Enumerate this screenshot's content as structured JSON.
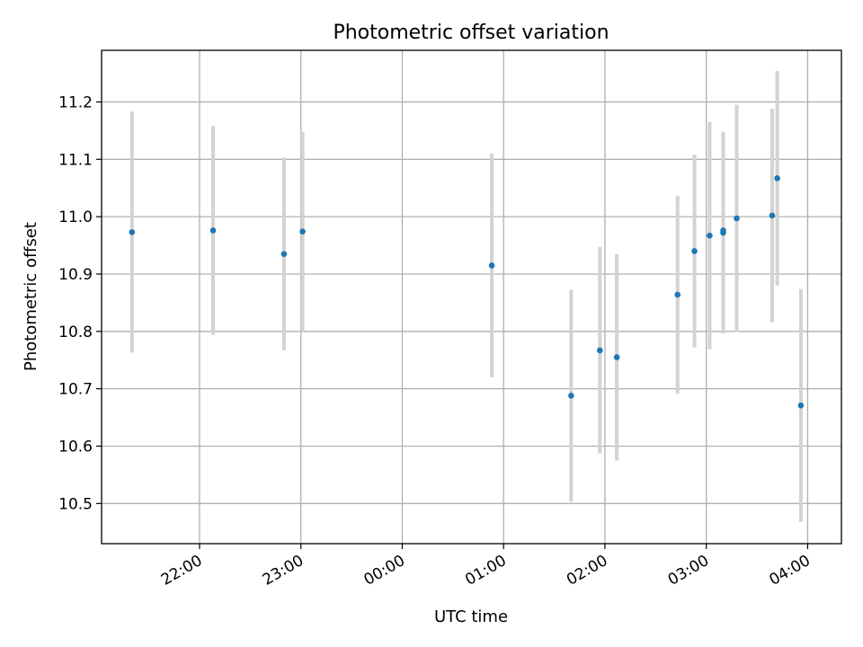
{
  "chart_data": {
    "type": "scatter",
    "title": "Photometric offset variation",
    "xlabel": "UTC time",
    "ylabel": "Photometric offset",
    "x_axis": "time",
    "x_ticks": [
      "22:00",
      "23:00",
      "00:00",
      "01:00",
      "02:00",
      "03:00",
      "04:00"
    ],
    "y_ticks": [
      "10.5",
      "10.6",
      "10.7",
      "10.8",
      "10.9",
      "11.0",
      "11.1",
      "11.2"
    ],
    "xlim": [
      "21:02",
      "04:20"
    ],
    "ylim": [
      10.43,
      11.29
    ],
    "grid": true,
    "point_color": "#1f77b4",
    "errorbar_color": "#d3d3d3",
    "points": [
      {
        "t": "21:20",
        "y": 10.973,
        "err": 0.21
      },
      {
        "t": "22:08",
        "y": 10.976,
        "err": 0.182
      },
      {
        "t": "22:50",
        "y": 10.935,
        "err": 0.168
      },
      {
        "t": "23:01",
        "y": 10.974,
        "err": 0.174
      },
      {
        "t": "00:53",
        "y": 10.915,
        "err": 0.195
      },
      {
        "t": "01:40",
        "y": 10.688,
        "err": 0.185
      },
      {
        "t": "01:57",
        "y": 10.767,
        "err": 0.18
      },
      {
        "t": "02:07",
        "y": 10.755,
        "err": 0.18
      },
      {
        "t": "02:43",
        "y": 10.864,
        "err": 0.172
      },
      {
        "t": "02:53",
        "y": 10.94,
        "err": 0.168
      },
      {
        "t": "03:02",
        "y": 10.967,
        "err": 0.198
      },
      {
        "t": "03:10",
        "y": 10.976,
        "err": 0.16
      },
      {
        "t": "03:10",
        "y": 10.972,
        "err": 0.176
      },
      {
        "t": "03:18",
        "y": 10.997,
        "err": 0.198
      },
      {
        "t": "03:39",
        "y": 11.002,
        "err": 0.186
      },
      {
        "t": "03:42",
        "y": 11.067,
        "err": 0.187
      },
      {
        "t": "03:56",
        "y": 10.671,
        "err": 0.203
      }
    ]
  }
}
